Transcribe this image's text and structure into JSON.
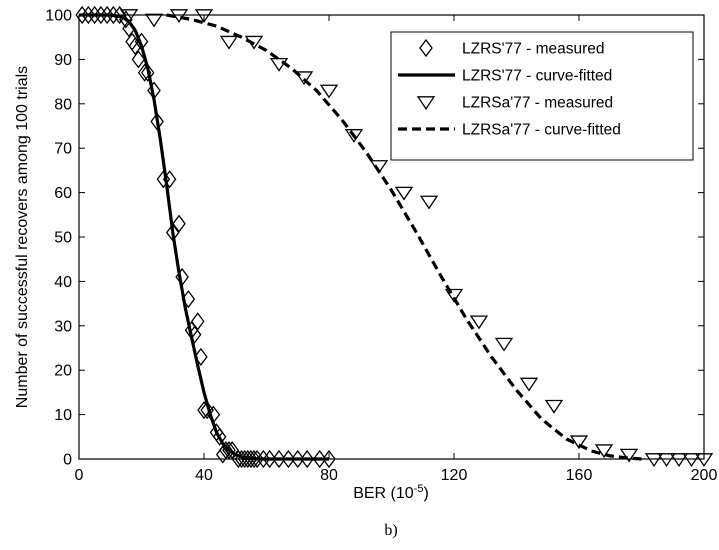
{
  "chart_data": {
    "type": "line",
    "xlabel": "BER (10",
    "xlabel_exp": "-5",
    "xlabel_close": ")",
    "ylabel": "Number of successful recovers among 100 trials",
    "caption": "b)",
    "xlim": [
      0,
      200
    ],
    "ylim": [
      0,
      100
    ],
    "xticks": [
      0,
      40,
      80,
      120,
      160,
      200
    ],
    "yticks": [
      0,
      10,
      20,
      30,
      40,
      50,
      60,
      70,
      80,
      90,
      100
    ],
    "grid": false,
    "legend_position": "top-right",
    "series": [
      {
        "name": "LZRS'77 - measured",
        "style": "diamond-markers",
        "color": "#000000",
        "x": [
          1,
          3,
          5,
          7,
          9,
          11,
          13,
          15,
          16,
          17,
          18,
          19,
          20,
          21,
          22,
          24,
          25,
          27,
          29,
          30,
          32,
          33,
          35,
          36,
          37,
          38,
          39,
          40,
          41,
          43,
          44,
          45,
          46,
          47,
          48,
          49,
          51,
          52,
          53,
          54,
          55,
          56,
          57,
          59,
          61,
          64,
          67,
          70,
          73,
          77,
          80
        ],
        "y": [
          100,
          100,
          100,
          100,
          100,
          100,
          100,
          99,
          97,
          94,
          93,
          90,
          94,
          87,
          87,
          83,
          76,
          63,
          63,
          51,
          53,
          41,
          36,
          29,
          28,
          31,
          23,
          11,
          11,
          10,
          6,
          5,
          1,
          2,
          2,
          2,
          0,
          0,
          0,
          0,
          0,
          0,
          0,
          0,
          0,
          0,
          0,
          0,
          0,
          0,
          0
        ]
      },
      {
        "name": "LZRS'77 - curve-fitted",
        "style": "solid",
        "color": "#000000",
        "x": [
          0,
          10,
          14,
          16,
          18,
          20,
          22,
          24,
          26,
          28,
          30,
          32,
          34,
          36,
          38,
          40,
          42,
          44,
          46,
          48,
          50,
          52,
          54,
          56,
          58,
          60,
          62,
          66,
          70,
          80
        ],
        "y": [
          100,
          100,
          99.5,
          98.5,
          96.5,
          93,
          88,
          81,
          72,
          62,
          51,
          42,
          34,
          27.5,
          21,
          15,
          10,
          6,
          3.5,
          2,
          1,
          0.5,
          0.2,
          0.1,
          0,
          0,
          0,
          0,
          0,
          0
        ]
      },
      {
        "name": "LZRSa'77 - measured",
        "style": "triangle-down-markers",
        "color": "#000000",
        "x": [
          16,
          24,
          32,
          40,
          48,
          56,
          64,
          72,
          80,
          88,
          96,
          104,
          112,
          120,
          128,
          136,
          144,
          152,
          160,
          168,
          176,
          184,
          188,
          192,
          196,
          200
        ],
        "y": [
          100,
          99,
          100,
          100,
          94,
          94,
          89,
          86,
          83,
          73,
          66,
          60,
          58,
          37,
          31,
          26,
          17,
          12,
          4,
          2,
          1,
          0,
          0,
          0,
          0,
          0
        ]
      },
      {
        "name": "LZRSa'77 - curve-fitted",
        "style": "dashed",
        "color": "#000000",
        "x": [
          28,
          36,
          44,
          52,
          60,
          68,
          76,
          84,
          92,
          100,
          108,
          116,
          124,
          132,
          140,
          148,
          156,
          164,
          170,
          176,
          180
        ],
        "y": [
          100,
          99,
          97.5,
          95,
          92,
          88,
          83,
          76.5,
          69,
          60.5,
          51,
          41,
          31.5,
          23,
          15.5,
          9,
          4.5,
          1.8,
          0.7,
          0.2,
          0
        ]
      }
    ]
  }
}
